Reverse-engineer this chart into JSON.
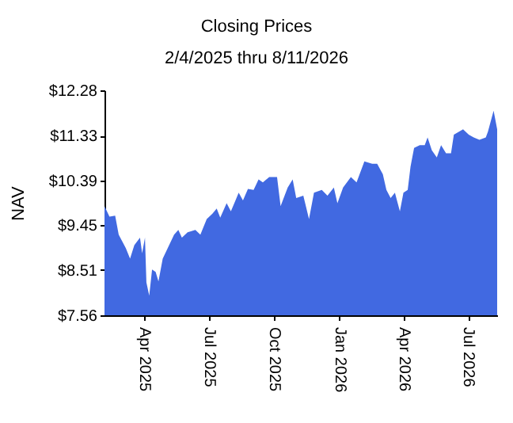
{
  "chart_data": {
    "type": "area",
    "title": "Closing Prices",
    "subtitle": "2/4/2025 thru 8/11/2026",
    "ylabel": "NAV",
    "x": [
      "2025-02-04",
      "2025-02-11",
      "2025-02-19",
      "2025-02-24",
      "2025-03-06",
      "2025-03-12",
      "2025-03-18",
      "2025-03-26",
      "2025-03-29",
      "2025-04-02",
      "2025-04-04",
      "2025-04-08",
      "2025-04-12",
      "2025-04-17",
      "2025-04-21",
      "2025-04-27",
      "2025-05-06",
      "2025-05-13",
      "2025-05-19",
      "2025-05-24",
      "2025-06-01",
      "2025-06-12",
      "2025-06-19",
      "2025-06-28",
      "2025-07-06",
      "2025-07-12",
      "2025-07-17",
      "2025-07-26",
      "2025-08-01",
      "2025-08-12",
      "2025-08-18",
      "2025-08-25",
      "2025-09-02",
      "2025-09-09",
      "2025-09-15",
      "2025-09-24",
      "2025-10-05",
      "2025-10-10",
      "2025-10-20",
      "2025-10-27",
      "2025-11-01",
      "2025-11-11",
      "2025-11-19",
      "2025-11-26",
      "2025-12-07",
      "2025-12-15",
      "2025-12-24",
      "2025-12-29",
      "2026-01-06",
      "2026-01-17",
      "2026-01-25",
      "2026-02-05",
      "2026-02-16",
      "2026-02-23",
      "2026-03-03",
      "2026-03-08",
      "2026-03-14",
      "2026-03-20",
      "2026-03-27",
      "2026-04-01",
      "2026-04-07",
      "2026-04-11",
      "2026-04-16",
      "2026-04-24",
      "2026-05-01",
      "2026-05-05",
      "2026-05-11",
      "2026-05-18",
      "2026-05-24",
      "2026-05-31",
      "2026-06-07",
      "2026-06-11",
      "2026-06-24",
      "2026-07-02",
      "2026-07-09",
      "2026-07-17",
      "2026-07-26",
      "2026-07-29",
      "2026-08-06",
      "2026-08-11"
    ],
    "series": [
      {
        "color": "#4169e1",
        "values": [
          9.85,
          9.63,
          9.65,
          9.25,
          8.97,
          8.75,
          9.03,
          9.19,
          8.86,
          9.19,
          8.25,
          7.97,
          8.52,
          8.47,
          8.27,
          8.75,
          9.03,
          9.25,
          9.35,
          9.19,
          9.3,
          9.35,
          9.25,
          9.58,
          9.69,
          9.8,
          9.61,
          9.91,
          9.74,
          10.13,
          9.97,
          10.21,
          10.19,
          10.41,
          10.35,
          10.46,
          10.46,
          9.85,
          10.24,
          10.41,
          10.02,
          10.07,
          9.58,
          10.13,
          10.19,
          10.07,
          10.24,
          9.91,
          10.24,
          10.46,
          10.35,
          10.79,
          10.74,
          10.74,
          10.52,
          10.19,
          10.02,
          10.13,
          9.74,
          10.13,
          10.19,
          10.68,
          11.07,
          11.13,
          11.13,
          11.29,
          11.02,
          10.87,
          11.13,
          10.96,
          10.96,
          11.35,
          11.46,
          11.35,
          11.29,
          11.24,
          11.29,
          11.41,
          11.85,
          11.46
        ]
      }
    ],
    "xlim": [
      "2025-02-04",
      "2026-08-11"
    ],
    "xticks": [
      {
        "value": "2025-04-01",
        "label": "Apr 2025"
      },
      {
        "value": "2025-07-01",
        "label": "Jul 2025"
      },
      {
        "value": "2025-10-01",
        "label": "Oct 2025"
      },
      {
        "value": "2026-01-01",
        "label": "Jan 2026"
      },
      {
        "value": "2026-04-01",
        "label": "Apr 2026"
      },
      {
        "value": "2026-07-01",
        "label": "Jul 2026"
      }
    ],
    "ylim": [
      7.56,
      12.28
    ],
    "yticks": [
      {
        "value": 7.56,
        "label": "$7.56"
      },
      {
        "value": 8.51,
        "label": "$8.51"
      },
      {
        "value": 9.45,
        "label": "$9.45"
      },
      {
        "value": 10.39,
        "label": "$10.39"
      },
      {
        "value": 11.33,
        "label": "$11.33"
      },
      {
        "value": 12.28,
        "label": "$12.28"
      }
    ],
    "grid": false
  }
}
